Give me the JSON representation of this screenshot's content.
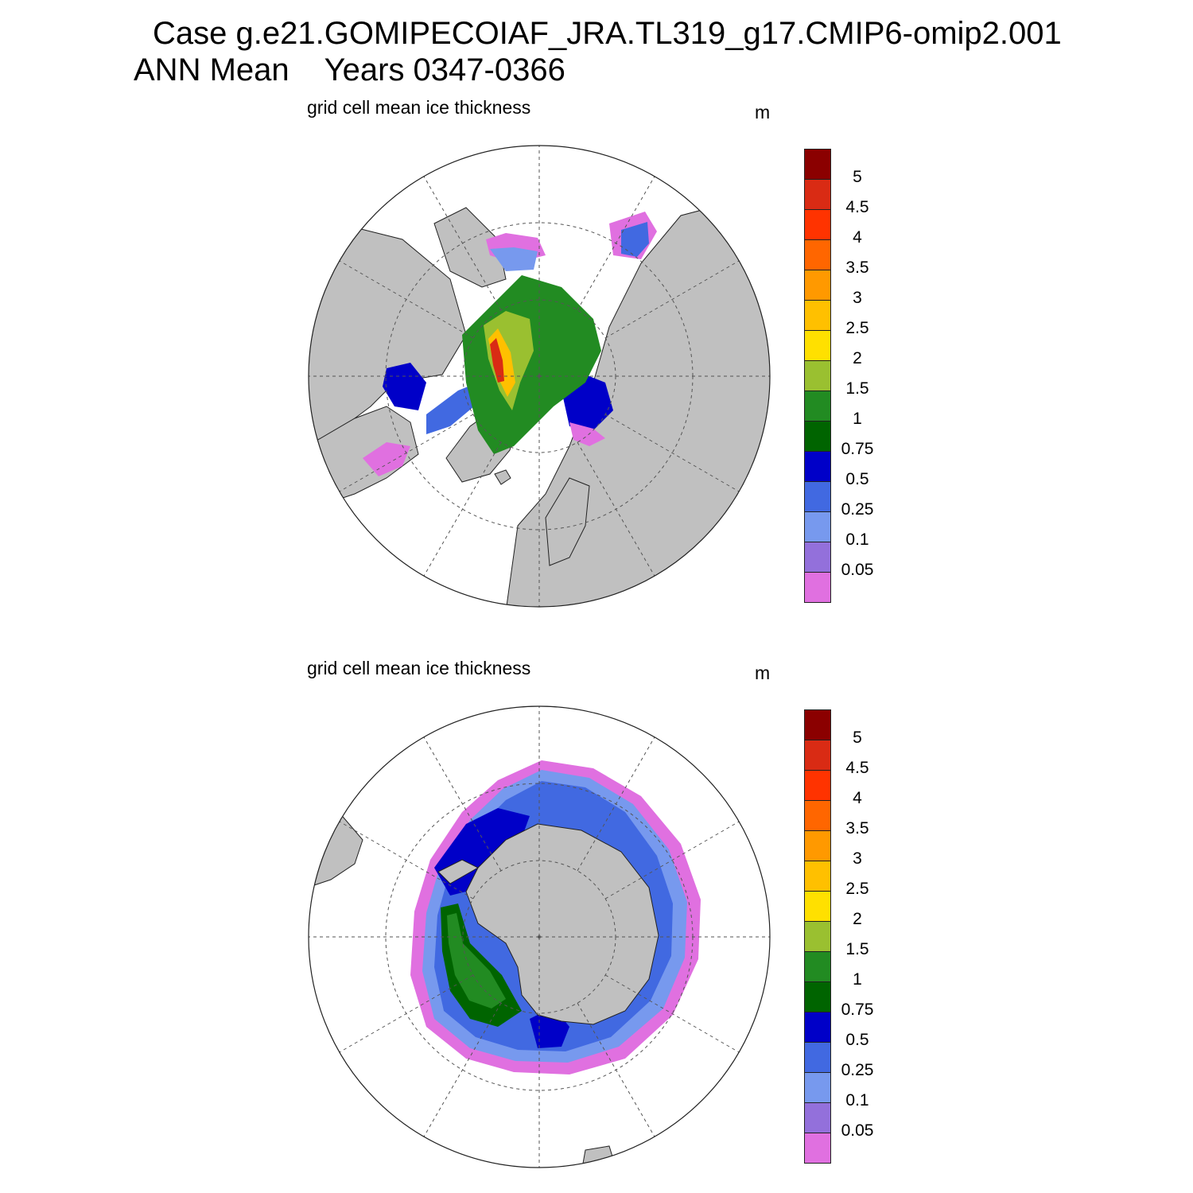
{
  "title": {
    "line1": "Case g.e21.GOMIPECOIAF_JRA.TL319_g17.CMIP6-omip2.001",
    "line2a": "ANN Mean",
    "line2b": "Years 0347-0366"
  },
  "panels": [
    {
      "id": "north",
      "hemisphere": "north",
      "subtitle": "grid cell mean ice thickness",
      "unit": "m"
    },
    {
      "id": "south",
      "hemisphere": "south",
      "subtitle": "grid cell mean ice thickness",
      "unit": "m"
    }
  ],
  "colorbar": {
    "levels": [
      "5",
      "4.5",
      "4",
      "3.5",
      "3",
      "2.5",
      "2",
      "1.5",
      "1",
      "0.75",
      "0.5",
      "0.25",
      "0.1",
      "0.05"
    ],
    "colors": [
      "#8b0000",
      "#d92b14",
      "#ff3300",
      "#ff6600",
      "#ff9900",
      "#ffc000",
      "#ffe000",
      "#9ac030",
      "#228b22",
      "#006400",
      "#0000c8",
      "#4169e1",
      "#7799ee",
      "#9370db",
      "#e070e0"
    ]
  },
  "map_style": {
    "land_color": "#c0c0c0",
    "ocean_color": "#ffffff",
    "grid_color": "#555555"
  }
}
